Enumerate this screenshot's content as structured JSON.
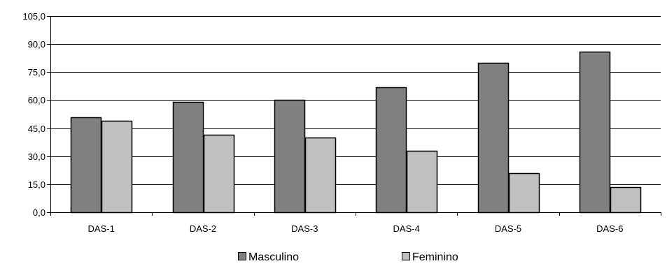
{
  "chart_data": {
    "type": "bar",
    "categories": [
      "DAS-1",
      "DAS-2",
      "DAS-3",
      "DAS-4",
      "DAS-5",
      "DAS-6"
    ],
    "series": [
      {
        "name": "Masculino",
        "values": [
          51.0,
          59.0,
          60.0,
          67.0,
          80.0,
          86.0
        ],
        "color": "#808080"
      },
      {
        "name": "Feminino",
        "values": [
          49.0,
          41.5,
          40.0,
          33.0,
          21.0,
          13.5
        ],
        "color": "#c0c0c0"
      }
    ],
    "ylim": [
      0,
      105
    ],
    "yticks": [
      {
        "value": 0,
        "label": "0,0"
      },
      {
        "value": 15,
        "label": "15,0"
      },
      {
        "value": 30,
        "label": "30,0"
      },
      {
        "value": 45,
        "label": "45,0"
      },
      {
        "value": 60,
        "label": "60,0"
      },
      {
        "value": 75,
        "label": "75,0"
      },
      {
        "value": 90,
        "label": "90,0"
      },
      {
        "value": 105,
        "label": "105,0"
      }
    ],
    "grid": true,
    "legend_position": "bottom"
  }
}
